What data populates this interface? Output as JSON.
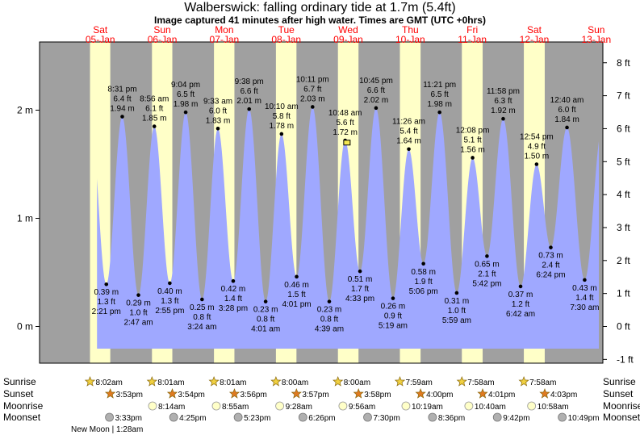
{
  "header": {
    "title": "Walberswick: falling  ordinary tide at 1.7m (5.4ft)",
    "subtitle": "Image captured 41 minutes after high water. Times are GMT (UTC +0hrs)"
  },
  "colors": {
    "water": "#9fa8ff",
    "night": "#a0a0a0",
    "day": "#ffffc8",
    "day_header": "#ff0000",
    "sun_star": "#f0d040",
    "sunset_star": "#e07a20",
    "moon_circle": "#ffffc8",
    "moonset_circle": "#b0b0b0"
  },
  "chart_data": {
    "type": "area",
    "y_left_unit": "m",
    "y_right_unit": "ft",
    "y_left_ticks": [
      "0 m",
      "1 m",
      "2 m"
    ],
    "y_right_ticks": [
      "-1 ft",
      "0 ft",
      "1 ft",
      "2 ft",
      "3 ft",
      "4 ft",
      "5 ft",
      "6 ft",
      "7 ft",
      "8 ft"
    ],
    "ylim_m": [
      -0.18,
      2.62
    ],
    "grid": false,
    "days": [
      {
        "day": "Sat",
        "date": "05-Jan"
      },
      {
        "day": "Sun",
        "date": "06-Jan"
      },
      {
        "day": "Mon",
        "date": "07-Jan"
      },
      {
        "day": "Tue",
        "date": "08-Jan"
      },
      {
        "day": "Wed",
        "date": "09-Jan"
      },
      {
        "day": "Thu",
        "date": "10-Jan"
      },
      {
        "day": "Fri",
        "date": "11-Jan"
      },
      {
        "day": "Sat",
        "date": "12-Jan"
      },
      {
        "day": "Sun",
        "date": "13-Jan"
      }
    ],
    "current": {
      "time": "2024-01-09 11:29",
      "height_m": 1.7
    },
    "tides": [
      {
        "type": "low",
        "time": "2:21 pm",
        "m": "0.39 m",
        "ft": "1.3 ft",
        "t": "2024-01-05 14:21",
        "h": 0.39
      },
      {
        "type": "high",
        "time": "8:31 pm",
        "m": "1.94 m",
        "ft": "6.4 ft",
        "t": "2024-01-05 20:31",
        "h": 1.94
      },
      {
        "type": "low",
        "time": "2:47 am",
        "m": "0.29 m",
        "ft": "1.0 ft",
        "t": "2024-01-06 02:47",
        "h": 0.29
      },
      {
        "type": "high",
        "time": "8:56 am",
        "m": "1.85 m",
        "ft": "6.1 ft",
        "t": "2024-01-06 08:56",
        "h": 1.85
      },
      {
        "type": "low",
        "time": "2:55 pm",
        "m": "0.40 m",
        "ft": "1.3 ft",
        "t": "2024-01-06 14:55",
        "h": 0.4
      },
      {
        "type": "high",
        "time": "9:04 pm",
        "m": "1.98 m",
        "ft": "6.5 ft",
        "t": "2024-01-06 21:04",
        "h": 1.98
      },
      {
        "type": "low",
        "time": "3:24 am",
        "m": "0.25 m",
        "ft": "0.8 ft",
        "t": "2024-01-07 03:24",
        "h": 0.25
      },
      {
        "type": "high",
        "time": "9:33 am",
        "m": "1.83 m",
        "ft": "6.0 ft",
        "t": "2024-01-07 09:33",
        "h": 1.83
      },
      {
        "type": "low",
        "time": "3:28 pm",
        "m": "0.42 m",
        "ft": "1.4 ft",
        "t": "2024-01-07 15:28",
        "h": 0.42
      },
      {
        "type": "high",
        "time": "9:38 pm",
        "m": "2.01 m",
        "ft": "6.6 ft",
        "t": "2024-01-07 21:38",
        "h": 2.01
      },
      {
        "type": "low",
        "time": "4:01 am",
        "m": "0.23 m",
        "ft": "0.8 ft",
        "t": "2024-01-08 04:01",
        "h": 0.23
      },
      {
        "type": "high",
        "time": "10:10 am",
        "m": "1.78 m",
        "ft": "5.8 ft",
        "t": "2024-01-08 10:10",
        "h": 1.78
      },
      {
        "type": "low",
        "time": "4:01 pm",
        "m": "0.46 m",
        "ft": "1.5 ft",
        "t": "2024-01-08 16:01",
        "h": 0.46
      },
      {
        "type": "high",
        "time": "10:11 pm",
        "m": "2.03 m",
        "ft": "6.7 ft",
        "t": "2024-01-08 22:11",
        "h": 2.03
      },
      {
        "type": "low",
        "time": "4:39 am",
        "m": "0.23 m",
        "ft": "0.8 ft",
        "t": "2024-01-09 04:39",
        "h": 0.23
      },
      {
        "type": "high",
        "time": "10:48 am",
        "m": "1.72 m",
        "ft": "5.6 ft",
        "t": "2024-01-09 10:48",
        "h": 1.72
      },
      {
        "type": "low",
        "time": "4:33 pm",
        "m": "0.51 m",
        "ft": "1.7 ft",
        "t": "2024-01-09 16:33",
        "h": 0.51
      },
      {
        "type": "high",
        "time": "10:45 pm",
        "m": "2.02 m",
        "ft": "6.6 ft",
        "t": "2024-01-09 22:45",
        "h": 2.02
      },
      {
        "type": "low",
        "time": "5:19 am",
        "m": "0.26 m",
        "ft": "0.9 ft",
        "t": "2024-01-10 05:19",
        "h": 0.26
      },
      {
        "type": "high",
        "time": "11:26 am",
        "m": "1.64 m",
        "ft": "5.4 ft",
        "t": "2024-01-10 11:26",
        "h": 1.64
      },
      {
        "type": "low",
        "time": "5:06 pm",
        "m": "0.58 m",
        "ft": "1.9 ft",
        "t": "2024-01-10 17:06",
        "h": 0.58
      },
      {
        "type": "high",
        "time": "11:21 pm",
        "m": "1.98 m",
        "ft": "6.5 ft",
        "t": "2024-01-10 23:21",
        "h": 1.98
      },
      {
        "type": "low",
        "time": "5:59 am",
        "m": "0.31 m",
        "ft": "1.0 ft",
        "t": "2024-01-11 05:59",
        "h": 0.31
      },
      {
        "type": "high",
        "time": "12:08 pm",
        "m": "1.56 m",
        "ft": "5.1 ft",
        "t": "2024-01-11 12:08",
        "h": 1.56
      },
      {
        "type": "low",
        "time": "5:42 pm",
        "m": "0.65 m",
        "ft": "2.1 ft",
        "t": "2024-01-11 17:42",
        "h": 0.65
      },
      {
        "type": "high",
        "time": "11:58 pm",
        "m": "1.92 m",
        "ft": "6.3 ft",
        "t": "2024-01-11 23:58",
        "h": 1.92
      },
      {
        "type": "low",
        "time": "6:42 am",
        "m": "0.37 m",
        "ft": "1.2 ft",
        "t": "2024-01-12 06:42",
        "h": 0.37
      },
      {
        "type": "high",
        "time": "12:54 pm",
        "m": "1.50 m",
        "ft": "4.9 ft",
        "t": "2024-01-12 12:54",
        "h": 1.5
      },
      {
        "type": "low",
        "time": "6:24 pm",
        "m": "0.73 m",
        "ft": "2.4 ft",
        "t": "2024-01-12 18:24",
        "h": 0.73
      },
      {
        "type": "high",
        "time": "12:40 am",
        "m": "1.84 m",
        "ft": "6.0 ft",
        "t": "2024-01-13 00:40",
        "h": 1.84
      },
      {
        "type": "low",
        "time": "7:30 am",
        "m": "0.43 m",
        "ft": "1.4 ft",
        "t": "2024-01-13 07:30",
        "h": 0.43
      }
    ],
    "daylight": [
      {
        "rise": "2024-01-05 08:02",
        "set": "2024-01-05 15:53"
      },
      {
        "rise": "2024-01-06 08:01",
        "set": "2024-01-06 15:54"
      },
      {
        "rise": "2024-01-07 08:01",
        "set": "2024-01-07 15:56"
      },
      {
        "rise": "2024-01-08 08:00",
        "set": "2024-01-08 15:57"
      },
      {
        "rise": "2024-01-09 08:00",
        "set": "2024-01-09 15:58"
      },
      {
        "rise": "2024-01-10 07:59",
        "set": "2024-01-10 16:00"
      },
      {
        "rise": "2024-01-11 07:58",
        "set": "2024-01-11 16:01"
      },
      {
        "rise": "2024-01-12 07:58",
        "set": "2024-01-12 16:03"
      }
    ],
    "almanac": {
      "labels": [
        "Sunrise",
        "Sunset",
        "Moonrise",
        "Moonset"
      ],
      "sunrise": [
        {
          "text": "8:02am",
          "t": "2024-01-05 08:02"
        },
        {
          "text": "8:01am",
          "t": "2024-01-06 08:01"
        },
        {
          "text": "8:01am",
          "t": "2024-01-07 08:01"
        },
        {
          "text": "8:00am",
          "t": "2024-01-08 08:00"
        },
        {
          "text": "8:00am",
          "t": "2024-01-09 08:00"
        },
        {
          "text": "7:59am",
          "t": "2024-01-10 07:59"
        },
        {
          "text": "7:58am",
          "t": "2024-01-11 07:58"
        },
        {
          "text": "7:58am",
          "t": "2024-01-12 07:58"
        }
      ],
      "sunset": [
        {
          "text": "3:53pm",
          "t": "2024-01-05 15:53"
        },
        {
          "text": "3:54pm",
          "t": "2024-01-06 15:54"
        },
        {
          "text": "3:56pm",
          "t": "2024-01-07 15:56"
        },
        {
          "text": "3:57pm",
          "t": "2024-01-08 15:57"
        },
        {
          "text": "3:58pm",
          "t": "2024-01-09 15:58"
        },
        {
          "text": "4:00pm",
          "t": "2024-01-10 16:00"
        },
        {
          "text": "4:01pm",
          "t": "2024-01-11 16:01"
        },
        {
          "text": "4:03pm",
          "t": "2024-01-12 16:03"
        }
      ],
      "moonrise": [
        {
          "text": "8:14am",
          "t": "2024-01-06 08:14"
        },
        {
          "text": "8:55am",
          "t": "2024-01-07 08:55"
        },
        {
          "text": "9:28am",
          "t": "2024-01-08 09:28"
        },
        {
          "text": "9:56am",
          "t": "2024-01-09 09:56"
        },
        {
          "text": "10:19am",
          "t": "2024-01-10 10:19"
        },
        {
          "text": "10:40am",
          "t": "2024-01-11 10:40"
        },
        {
          "text": "10:58am",
          "t": "2024-01-12 10:58"
        }
      ],
      "moonset": [
        {
          "text": "3:33pm",
          "t": "2024-01-05 15:33"
        },
        {
          "text": "4:25pm",
          "t": "2024-01-06 16:25"
        },
        {
          "text": "5:23pm",
          "t": "2024-01-07 17:23"
        },
        {
          "text": "6:26pm",
          "t": "2024-01-08 18:26"
        },
        {
          "text": "7:30pm",
          "t": "2024-01-09 19:30"
        },
        {
          "text": "8:36pm",
          "t": "2024-01-10 20:36"
        },
        {
          "text": "9:42pm",
          "t": "2024-01-11 21:42"
        },
        {
          "text": "10:49pm",
          "t": "2024-01-12 22:49"
        }
      ],
      "new_moon": "New Moon | 1:28am"
    }
  }
}
